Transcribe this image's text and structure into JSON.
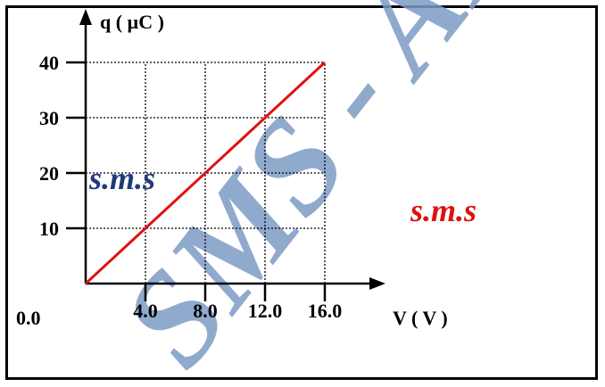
{
  "chart_data": {
    "type": "line",
    "xlabel": "V ( V )",
    "ylabel": "q ( µC )",
    "xlim": [
      0,
      16
    ],
    "ylim": [
      0,
      40
    ],
    "x_ticks": [
      4,
      8,
      12,
      16
    ],
    "x_tick_labels": [
      "4.0",
      "8.0",
      "12.0",
      "16.0"
    ],
    "y_ticks": [
      10,
      20,
      30,
      40
    ],
    "y_tick_labels": [
      "10",
      "20",
      "30",
      "40"
    ],
    "origin_label": "0.0",
    "grid": true,
    "series": [
      {
        "x": [
          0,
          16
        ],
        "y": [
          0,
          40
        ],
        "color": "#e01010"
      }
    ]
  },
  "watermarks": {
    "left_text": "s.m.s",
    "left_color": "#1f3a7a",
    "right_text": "s.m.s",
    "right_color": "#e01010",
    "diagonal_text": "SMS - AL",
    "diagonal_color": "#7d9cc6"
  }
}
